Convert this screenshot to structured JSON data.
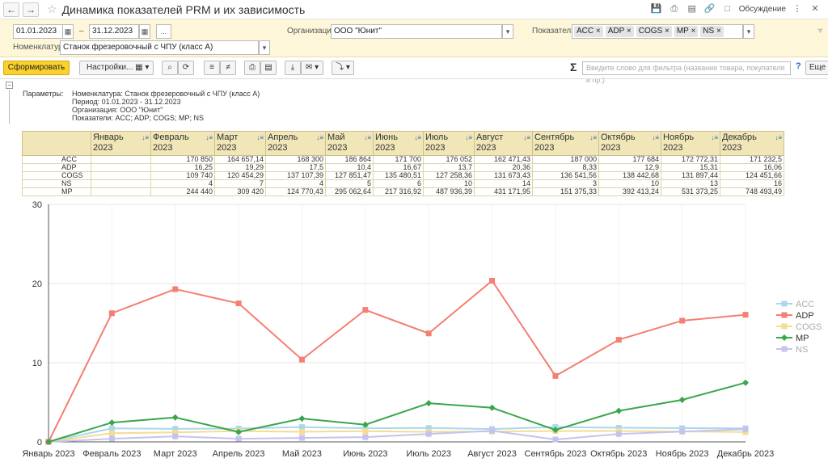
{
  "window": {
    "title": "Динамика показателей PRM и их зависимость",
    "discuss": "Обсуждение"
  },
  "filters": {
    "date_from": "01.01.2023",
    "date_to": "31.12.2023",
    "dots": "...",
    "org_label": "Организация:",
    "org_value": "ООО \"Юнит\"",
    "indicators_label": "Показатели:",
    "indicators": [
      "ACC",
      "ADP",
      "COGS",
      "MP",
      "NS"
    ],
    "nomen_label": "Номенклатура:",
    "nomen_value": "Станок фрезеровочный с ЧПУ (класс А)"
  },
  "toolbar": {
    "generate": "Сформировать",
    "settings": "Настройки...",
    "search_placeholder": "Введите слово для фильтра (название товара, покупателя и пр.)",
    "help": "?",
    "more": "Еще"
  },
  "params": {
    "label": "Параметры:",
    "nomen": "Номенклатура: Станок фрезеровочный с ЧПУ (класс А)",
    "period": "Период: 01.01.2023 - 31.12.2023",
    "org": "Организация: ООО \"Юнит\"",
    "indicators": "Показатели: ACC; ADP; COGS; MP; NS"
  },
  "table": {
    "months": [
      [
        "Январь",
        "2023"
      ],
      [
        "Февраль",
        "2023"
      ],
      [
        "Март",
        "2023"
      ],
      [
        "Апрель",
        "2023"
      ],
      [
        "Май",
        "2023"
      ],
      [
        "Июнь",
        "2023"
      ],
      [
        "Июль",
        "2023"
      ],
      [
        "Август",
        "2023"
      ],
      [
        "Сентябрь",
        "2023"
      ],
      [
        "Октябрь",
        "2023"
      ],
      [
        "Ноябрь",
        "2023"
      ],
      [
        "Декабрь",
        "2023"
      ]
    ],
    "rows": [
      {
        "label": "ACC",
        "cells": [
          "",
          "170 850",
          "164 657,14",
          "168 300",
          "186 864",
          "171 700",
          "176 052",
          "162 471,43",
          "187 000",
          "177 684",
          "172 772,31",
          "171 232,5"
        ]
      },
      {
        "label": "ADP",
        "cells": [
          "",
          "16,25",
          "19,29",
          "17,5",
          "10,4",
          "16,67",
          "13,7",
          "20,36",
          "8,33",
          "12,9",
          "15,31",
          "16,06"
        ]
      },
      {
        "label": "COGS",
        "cells": [
          "",
          "109 740",
          "120 454,29",
          "137 107,39",
          "127 851,47",
          "135 480,51",
          "127 258,36",
          "131 673,43",
          "136 541,56",
          "138 442,68",
          "131 897,44",
          "124 451,66"
        ]
      },
      {
        "label": "NS",
        "cells": [
          "",
          "4",
          "7",
          "4",
          "5",
          "6",
          "10",
          "14",
          "3",
          "10",
          "13",
          "16"
        ]
      },
      {
        "label": "MP",
        "cells": [
          "",
          "244 440",
          "309 420",
          "124 770,43",
          "295 062,64",
          "217 316,92",
          "487 936,39",
          "431 171,95",
          "151 375,33",
          "392 413,24",
          "531 373,25",
          "748 493,49"
        ]
      }
    ]
  },
  "chart_data": {
    "type": "line",
    "categories": [
      "Январь 2023",
      "Февраль 2023",
      "Март 2023",
      "Апрель 2023",
      "Май 2023",
      "Июнь 2023",
      "Июль 2023",
      "Август 2023",
      "Сентябрь 2023",
      "Октябрь 2023",
      "Ноябрь 2023",
      "Декабрь 2023"
    ],
    "ylim": [
      0,
      30
    ],
    "yticks": [
      0,
      10,
      20,
      30
    ],
    "grid": true,
    "legend_position": "right",
    "series": [
      {
        "name": "ACC",
        "color": "#a9d8ee",
        "marker": "square",
        "values": [
          0,
          1.71,
          1.65,
          1.68,
          1.87,
          1.72,
          1.76,
          1.62,
          1.87,
          1.78,
          1.73,
          1.71
        ]
      },
      {
        "name": "ADP",
        "color": "#f47f72",
        "marker": "square",
        "values": [
          0,
          16.25,
          19.29,
          17.5,
          10.4,
          16.67,
          13.7,
          20.36,
          8.33,
          12.9,
          15.31,
          16.06
        ]
      },
      {
        "name": "COGS",
        "color": "#f4dc93",
        "marker": "square",
        "values": [
          0,
          1.1,
          1.2,
          1.37,
          1.28,
          1.35,
          1.27,
          1.32,
          1.37,
          1.38,
          1.32,
          1.24
        ]
      },
      {
        "name": "MP",
        "color": "#3aa64a",
        "marker": "diamond",
        "values": [
          0,
          2.44,
          3.09,
          1.25,
          2.95,
          2.17,
          4.88,
          4.31,
          1.51,
          3.92,
          5.31,
          7.48
        ]
      },
      {
        "name": "NS",
        "color": "#c5c3ee",
        "marker": "square",
        "values": [
          0,
          0.4,
          0.7,
          0.4,
          0.5,
          0.6,
          1.0,
          1.4,
          0.3,
          1.0,
          1.3,
          1.6
        ]
      }
    ]
  }
}
